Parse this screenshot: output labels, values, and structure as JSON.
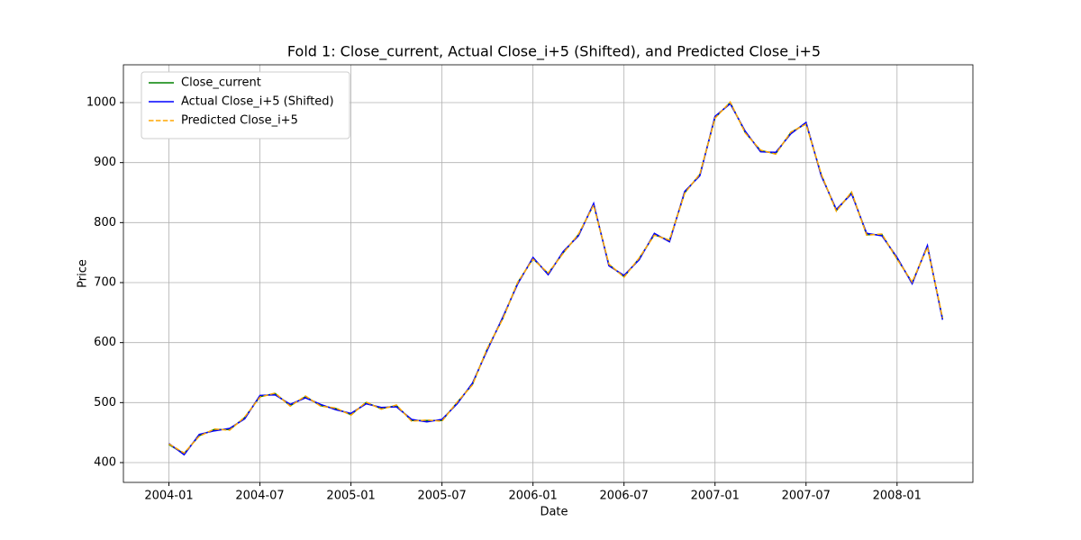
{
  "chart_data": {
    "type": "line",
    "title": "Fold 1: Close_current, Actual Close_i+5 (Shifted), and Predicted Close_i+5",
    "x_label": "Date",
    "y_label": "Price",
    "x": [
      "2004-01",
      "2004-02",
      "2004-03",
      "2004-04",
      "2004-05",
      "2004-06",
      "2004-07",
      "2004-08",
      "2004-09",
      "2004-10",
      "2004-11",
      "2004-12",
      "2005-01",
      "2005-02",
      "2005-03",
      "2005-04",
      "2005-05",
      "2005-06",
      "2005-07",
      "2005-08",
      "2005-09",
      "2005-10",
      "2005-11",
      "2005-12",
      "2006-01",
      "2006-02",
      "2006-03",
      "2006-04",
      "2006-05",
      "2006-06",
      "2006-07",
      "2006-08",
      "2006-09",
      "2006-10",
      "2006-11",
      "2006-12",
      "2007-01",
      "2007-02",
      "2007-03",
      "2007-04",
      "2007-05",
      "2007-06",
      "2007-07",
      "2007-08",
      "2007-09",
      "2007-10",
      "2007-11",
      "2007-12",
      "2008-01",
      "2008-02",
      "2008-03",
      "2008-04"
    ],
    "series": [
      {
        "name": "Close_current",
        "color": "green",
        "linestyle": "solid",
        "values": [
          430,
          415,
          445,
          455,
          455,
          475,
          510,
          515,
          495,
          510,
          495,
          490,
          480,
          500,
          490,
          495,
          470,
          470,
          470,
          500,
          530,
          590,
          640,
          700,
          740,
          715,
          750,
          780,
          830,
          730,
          710,
          740,
          780,
          770,
          850,
          880,
          975,
          1000,
          950,
          920,
          915,
          950,
          965,
          880,
          820,
          850,
          780,
          780,
          740,
          700,
          760,
          640
        ]
      },
      {
        "name": "Actual Close_i+5 (Shifted)",
        "color": "blue",
        "linestyle": "solid",
        "values": [
          432,
          413,
          447,
          453,
          457,
          473,
          512,
          513,
          497,
          508,
          497,
          488,
          482,
          498,
          492,
          493,
          472,
          468,
          472,
          498,
          532,
          588,
          642,
          698,
          742,
          713,
          752,
          778,
          832,
          728,
          712,
          738,
          782,
          768,
          852,
          878,
          977,
          998,
          952,
          918,
          917,
          948,
          967,
          878,
          822,
          848,
          782,
          778,
          742,
          698,
          762,
          638
        ]
      },
      {
        "name": "Predicted Close_i+5",
        "color": "orange",
        "linestyle": "dashed",
        "values": [
          431,
          416,
          444,
          456,
          454,
          476,
          509,
          516,
          494,
          511,
          494,
          491,
          479,
          501,
          489,
          496,
          469,
          471,
          469,
          501,
          529,
          591,
          639,
          701,
          739,
          716,
          749,
          781,
          829,
          731,
          709,
          741,
          779,
          771,
          849,
          881,
          974,
          1001,
          949,
          921,
          914,
          951,
          964,
          881,
          819,
          851,
          779,
          781,
          739,
          701,
          759,
          641
        ]
      }
    ],
    "xlim": [
      "2003-10",
      "2008-06"
    ],
    "xticks": [
      "2004-01",
      "2004-07",
      "2005-01",
      "2005-07",
      "2006-01",
      "2006-07",
      "2007-01",
      "2007-07",
      "2008-01"
    ],
    "ylim": [
      367,
      1063
    ],
    "yticks": [
      400,
      500,
      600,
      700,
      800,
      900,
      1000
    ],
    "grid": true,
    "legend": "upper left"
  }
}
